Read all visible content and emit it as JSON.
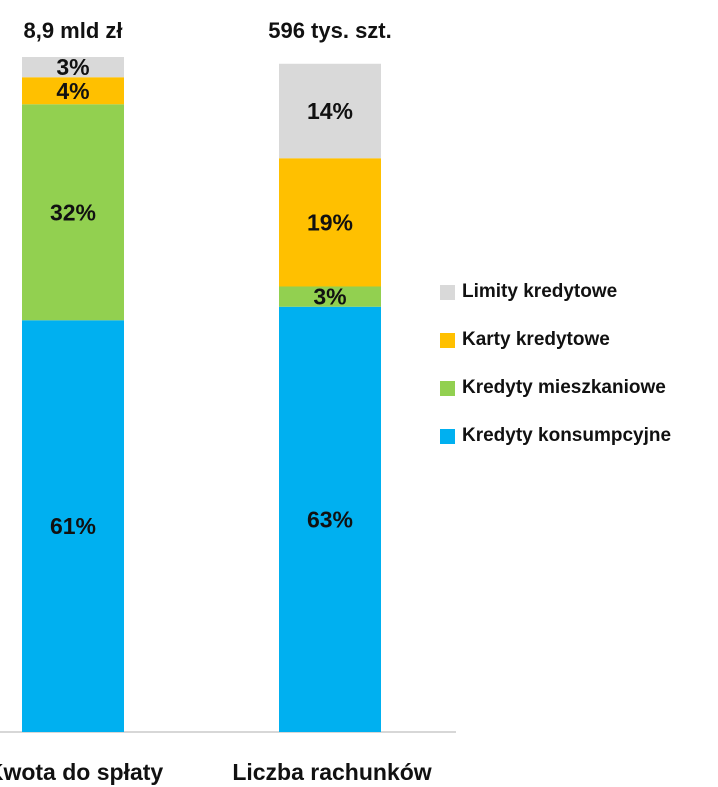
{
  "chart_data": {
    "type": "bar",
    "stacked": true,
    "percent_stacked": true,
    "categories": [
      "Kwota do spłaty",
      "Liczba rachunków"
    ],
    "totals": [
      "8,9 mld zł",
      "596 tys. szt."
    ],
    "series": [
      {
        "name": "Kredyty konsumpcyjne",
        "color": "#00B0F0",
        "values": [
          61,
          63
        ],
        "labels": [
          "61%",
          "63%"
        ]
      },
      {
        "name": "Kredyty mieszkaniowe",
        "color": "#92D050",
        "values": [
          32,
          3
        ],
        "labels": [
          "32%",
          "3%"
        ]
      },
      {
        "name": "Karty kredytowe",
        "color": "#FFC000",
        "values": [
          4,
          19
        ],
        "labels": [
          "4%",
          "19%"
        ]
      },
      {
        "name": "Limity kredytowe",
        "color": "#D9D9D9",
        "values": [
          3,
          14
        ],
        "labels": [
          "3%",
          "14%"
        ]
      }
    ],
    "legend_order": [
      "Limity kredytowe",
      "Karty kredytowe",
      "Kredyty mieszkaniowe",
      "Kredyty konsumpcyjne"
    ],
    "legend_position": "right",
    "ylim": [
      0,
      100
    ],
    "grid": false
  }
}
